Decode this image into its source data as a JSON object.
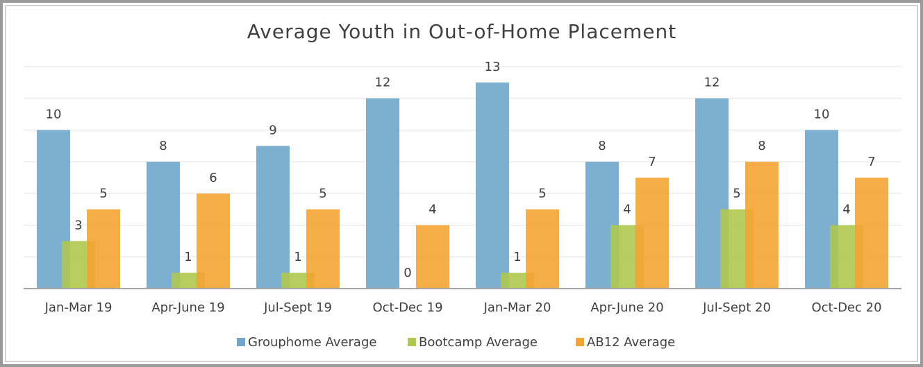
{
  "chart_data": {
    "type": "bar",
    "title": "Average Youth in Out-of-Home Placement",
    "categories": [
      "Jan-Mar 19",
      "Apr-June 19",
      "Jul-Sept 19",
      "Oct-Dec 19",
      "Jan-Mar 20",
      "Apr-June 20",
      "Jul-Sept 20",
      "Oct-Dec 20"
    ],
    "series": [
      {
        "name": "Grouphome Average",
        "color": "#6fa6cc",
        "values": [
          10,
          8,
          9,
          12,
          13,
          8,
          12,
          10
        ]
      },
      {
        "name": "Bootcamp Average",
        "color": "#afc84f",
        "values": [
          3,
          1,
          1,
          0,
          1,
          4,
          5,
          4
        ]
      },
      {
        "name": "AB12 Average",
        "color": "#f4a433",
        "values": [
          5,
          6,
          5,
          4,
          5,
          7,
          8,
          7
        ]
      }
    ],
    "ylim": [
      0,
      14
    ],
    "yticks": [
      0,
      2,
      4,
      6,
      8,
      10,
      12,
      14
    ],
    "grid": true,
    "legend": "bottom"
  }
}
